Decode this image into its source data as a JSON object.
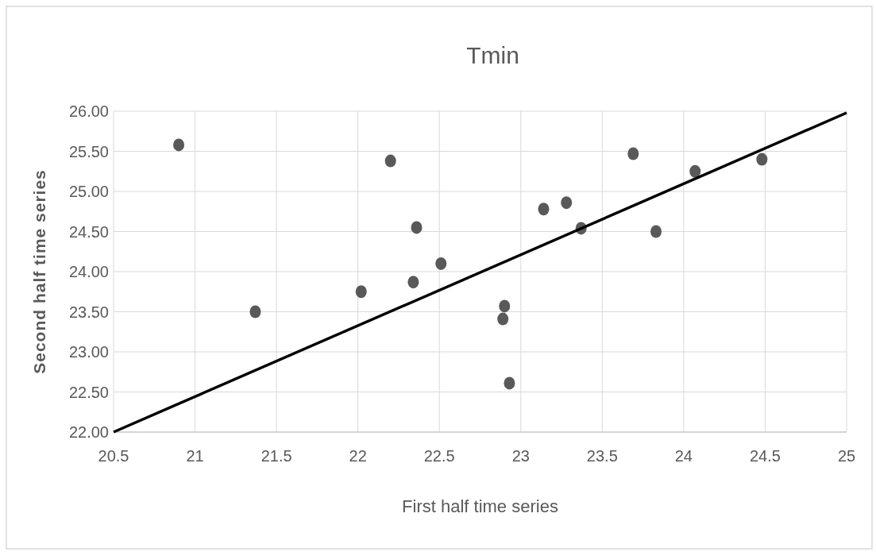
{
  "chart_data": {
    "type": "scatter",
    "title": "Tmin",
    "xlabel": "First half time series",
    "ylabel": "Second half time series",
    "xlim": [
      20.5,
      25
    ],
    "xticks": [
      20.5,
      21,
      21.5,
      22,
      22.5,
      23,
      23.5,
      24,
      24.5,
      25
    ],
    "ylim": [
      22,
      26
    ],
    "yticks": [
      {
        "value": 22,
        "label": "22.00"
      },
      {
        "value": 22.5,
        "label": "22.50"
      },
      {
        "value": 23,
        "label": "23.00"
      },
      {
        "value": 23.5,
        "label": "23.50"
      },
      {
        "value": 24,
        "label": "24.00"
      },
      {
        "value": 24.5,
        "label": "24.50"
      },
      {
        "value": 25,
        "label": "25.00"
      },
      {
        "value": 25.5,
        "label": "25.50"
      },
      {
        "value": 26,
        "label": "26.00"
      }
    ],
    "grid": true,
    "series": [
      {
        "marker": "circle",
        "color": "#595959",
        "x": [
          20.9,
          21.37,
          22.02,
          22.2,
          22.34,
          22.36,
          22.51,
          22.89,
          22.9,
          22.93,
          23.14,
          23.28,
          23.37,
          23.69,
          23.83,
          24.07,
          24.48
        ],
        "values": [
          25.58,
          23.5,
          23.75,
          25.38,
          23.87,
          24.55,
          24.1,
          23.41,
          23.57,
          22.61,
          24.78,
          24.86,
          24.54,
          25.47,
          24.5,
          25.25,
          25.4
        ]
      },
      {
        "type": "line",
        "color": "#000000",
        "line_style": "solid",
        "x": [
          20.5,
          25
        ],
        "values": [
          22.0,
          25.98
        ]
      }
    ]
  }
}
